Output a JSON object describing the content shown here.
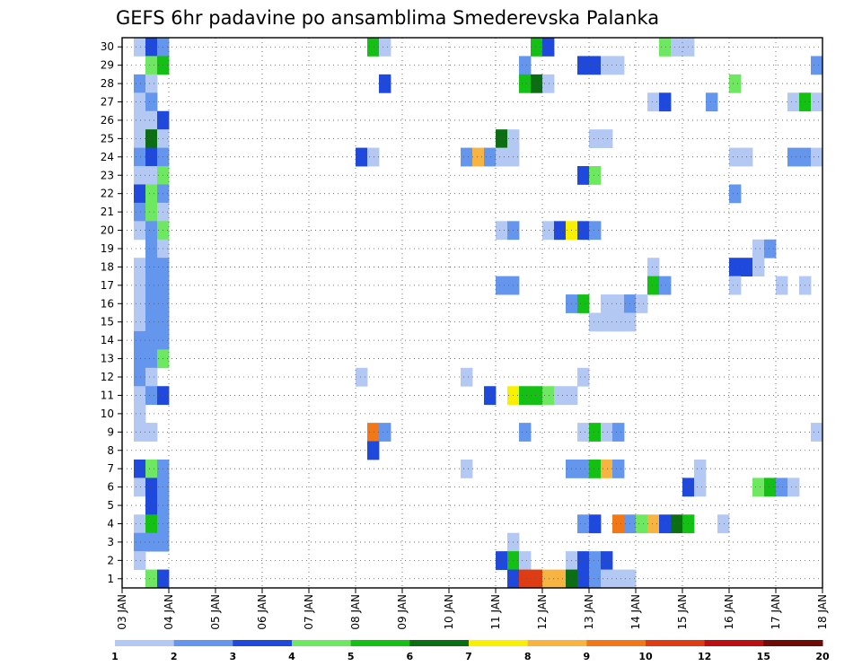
{
  "chart_data": {
    "type": "heatmap",
    "title": "GEFS 6hr padavine po ansamblima Smederevska Palanka",
    "x_tick_labels": [
      "03 JAN",
      "04 JAN",
      "05 JAN",
      "06 JAN",
      "07 JAN",
      "08 JAN",
      "09 JAN",
      "10 JAN",
      "11 JAN",
      "12 JAN",
      "13 JAN",
      "14 JAN",
      "15 JAN",
      "16 JAN",
      "17 JAN",
      "18 JAN"
    ],
    "y_tick_labels": [
      "1",
      "2",
      "3",
      "4",
      "5",
      "6",
      "7",
      "8",
      "9",
      "10",
      "11",
      "12",
      "13",
      "14",
      "15",
      "16",
      "17",
      "18",
      "19",
      "20",
      "21",
      "22",
      "23",
      "24",
      "25",
      "26",
      "27",
      "28",
      "29",
      "30"
    ],
    "grid": true,
    "colorbar": {
      "labels": [
        "1",
        "2",
        "3",
        "4",
        "5",
        "6",
        "7",
        "8",
        "9",
        "10",
        "12",
        "15",
        "20"
      ],
      "colors": [
        "#b4c8f4",
        "#6496ee",
        "#1f48dc",
        "#6ee860",
        "#14c014",
        "#0c6e12",
        "#f8f000",
        "#f8b440",
        "#f07818",
        "#e03c14",
        "#bc1010",
        "#6e0c08"
      ]
    },
    "cells": [
      [
        30,
        1,
        1
      ],
      [
        30,
        2,
        3
      ],
      [
        30,
        3,
        2
      ],
      [
        30,
        21,
        5
      ],
      [
        30,
        22,
        1
      ],
      [
        30,
        35,
        5
      ],
      [
        30,
        36,
        3
      ],
      [
        30,
        46,
        4
      ],
      [
        30,
        47,
        1
      ],
      [
        30,
        48,
        1
      ],
      [
        29,
        2,
        4
      ],
      [
        29,
        3,
        5
      ],
      [
        29,
        34,
        2
      ],
      [
        29,
        39,
        3
      ],
      [
        29,
        40,
        3
      ],
      [
        29,
        41,
        1
      ],
      [
        29,
        42,
        1
      ],
      [
        29,
        59,
        2
      ],
      [
        28,
        1,
        2
      ],
      [
        28,
        2,
        1
      ],
      [
        28,
        22,
        3
      ],
      [
        28,
        34,
        5
      ],
      [
        28,
        35,
        6
      ],
      [
        28,
        36,
        1
      ],
      [
        28,
        52,
        4
      ],
      [
        27,
        1,
        1
      ],
      [
        27,
        2,
        2
      ],
      [
        27,
        45,
        1
      ],
      [
        27,
        46,
        3
      ],
      [
        27,
        50,
        2
      ],
      [
        27,
        57,
        1
      ],
      [
        27,
        58,
        5
      ],
      [
        27,
        59,
        1
      ],
      [
        26,
        1,
        1
      ],
      [
        26,
        2,
        1
      ],
      [
        26,
        3,
        3
      ],
      [
        25,
        1,
        1
      ],
      [
        25,
        2,
        6
      ],
      [
        25,
        3,
        1
      ],
      [
        25,
        32,
        6
      ],
      [
        25,
        33,
        1
      ],
      [
        25,
        40,
        1
      ],
      [
        25,
        41,
        1
      ],
      [
        24,
        1,
        2
      ],
      [
        24,
        2,
        3
      ],
      [
        24,
        3,
        2
      ],
      [
        24,
        20,
        3
      ],
      [
        24,
        21,
        1
      ],
      [
        24,
        29,
        2
      ],
      [
        24,
        30,
        8
      ],
      [
        24,
        31,
        2
      ],
      [
        24,
        32,
        1
      ],
      [
        24,
        33,
        1
      ],
      [
        24,
        52,
        1
      ],
      [
        24,
        53,
        1
      ],
      [
        24,
        57,
        2
      ],
      [
        24,
        58,
        2
      ],
      [
        24,
        59,
        1
      ],
      [
        23,
        1,
        1
      ],
      [
        23,
        2,
        1
      ],
      [
        23,
        3,
        4
      ],
      [
        23,
        39,
        3
      ],
      [
        23,
        40,
        4
      ],
      [
        22,
        1,
        3
      ],
      [
        22,
        2,
        4
      ],
      [
        22,
        3,
        2
      ],
      [
        22,
        52,
        2
      ],
      [
        21,
        1,
        2
      ],
      [
        21,
        2,
        4
      ],
      [
        21,
        3,
        1
      ],
      [
        20,
        1,
        1
      ],
      [
        20,
        2,
        2
      ],
      [
        20,
        3,
        4
      ],
      [
        20,
        32,
        1
      ],
      [
        20,
        33,
        2
      ],
      [
        20,
        36,
        1
      ],
      [
        20,
        37,
        3
      ],
      [
        20,
        38,
        7
      ],
      [
        20,
        39,
        3
      ],
      [
        20,
        40,
        2
      ],
      [
        19,
        2,
        2
      ],
      [
        19,
        3,
        1
      ],
      [
        19,
        54,
        1
      ],
      [
        19,
        55,
        2
      ],
      [
        18,
        1,
        1
      ],
      [
        18,
        2,
        2
      ],
      [
        18,
        3,
        2
      ],
      [
        18,
        45,
        1
      ],
      [
        18,
        52,
        3
      ],
      [
        18,
        53,
        3
      ],
      [
        18,
        54,
        1
      ],
      [
        17,
        1,
        1
      ],
      [
        17,
        2,
        2
      ],
      [
        17,
        3,
        2
      ],
      [
        17,
        32,
        2
      ],
      [
        17,
        33,
        2
      ],
      [
        17,
        45,
        5
      ],
      [
        17,
        46,
        2
      ],
      [
        17,
        52,
        1
      ],
      [
        17,
        56,
        1
      ],
      [
        17,
        58,
        1
      ],
      [
        16,
        1,
        1
      ],
      [
        16,
        2,
        2
      ],
      [
        16,
        3,
        2
      ],
      [
        16,
        38,
        2
      ],
      [
        16,
        39,
        5
      ],
      [
        16,
        41,
        1
      ],
      [
        16,
        42,
        1
      ],
      [
        16,
        43,
        2
      ],
      [
        16,
        44,
        1
      ],
      [
        15,
        1,
        1
      ],
      [
        15,
        2,
        2
      ],
      [
        15,
        3,
        2
      ],
      [
        15,
        40,
        1
      ],
      [
        15,
        41,
        1
      ],
      [
        15,
        42,
        1
      ],
      [
        15,
        43,
        1
      ],
      [
        14,
        1,
        2
      ],
      [
        14,
        2,
        2
      ],
      [
        14,
        3,
        2
      ],
      [
        13,
        1,
        2
      ],
      [
        13,
        2,
        2
      ],
      [
        13,
        3,
        4
      ],
      [
        12,
        1,
        2
      ],
      [
        12,
        2,
        1
      ],
      [
        12,
        20,
        1
      ],
      [
        12,
        29,
        1
      ],
      [
        12,
        39,
        1
      ],
      [
        11,
        1,
        1
      ],
      [
        11,
        2,
        2
      ],
      [
        11,
        3,
        3
      ],
      [
        11,
        31,
        3
      ],
      [
        11,
        33,
        7
      ],
      [
        11,
        34,
        5
      ],
      [
        11,
        35,
        5
      ],
      [
        11,
        36,
        4
      ],
      [
        11,
        37,
        1
      ],
      [
        11,
        38,
        1
      ],
      [
        10,
        1,
        1
      ],
      [
        9,
        1,
        1
      ],
      [
        9,
        2,
        1
      ],
      [
        9,
        21,
        9
      ],
      [
        9,
        22,
        2
      ],
      [
        9,
        34,
        2
      ],
      [
        9,
        39,
        1
      ],
      [
        9,
        40,
        5
      ],
      [
        9,
        41,
        1
      ],
      [
        9,
        42,
        2
      ],
      [
        9,
        59,
        1
      ],
      [
        8,
        21,
        3
      ],
      [
        7,
        1,
        3
      ],
      [
        7,
        2,
        4
      ],
      [
        7,
        3,
        2
      ],
      [
        7,
        29,
        1
      ],
      [
        7,
        38,
        2
      ],
      [
        7,
        39,
        2
      ],
      [
        7,
        40,
        5
      ],
      [
        7,
        41,
        8
      ],
      [
        7,
        42,
        2
      ],
      [
        7,
        49,
        1
      ],
      [
        6,
        1,
        1
      ],
      [
        6,
        2,
        3
      ],
      [
        6,
        3,
        2
      ],
      [
        6,
        48,
        3
      ],
      [
        6,
        49,
        1
      ],
      [
        6,
        54,
        4
      ],
      [
        6,
        55,
        5
      ],
      [
        6,
        56,
        2
      ],
      [
        6,
        57,
        1
      ],
      [
        5,
        2,
        3
      ],
      [
        5,
        3,
        2
      ],
      [
        4,
        1,
        1
      ],
      [
        4,
        2,
        5
      ],
      [
        4,
        3,
        2
      ],
      [
        4,
        39,
        2
      ],
      [
        4,
        40,
        3
      ],
      [
        4,
        42,
        9
      ],
      [
        4,
        43,
        2
      ],
      [
        4,
        44,
        4
      ],
      [
        4,
        45,
        8
      ],
      [
        4,
        46,
        3
      ],
      [
        4,
        47,
        6
      ],
      [
        4,
        48,
        5
      ],
      [
        4,
        51,
        1
      ],
      [
        3,
        1,
        2
      ],
      [
        3,
        2,
        2
      ],
      [
        3,
        3,
        2
      ],
      [
        3,
        33,
        1
      ],
      [
        2,
        1,
        1
      ],
      [
        2,
        32,
        3
      ],
      [
        2,
        33,
        5
      ],
      [
        2,
        34,
        1
      ],
      [
        2,
        38,
        1
      ],
      [
        2,
        39,
        3
      ],
      [
        2,
        40,
        2
      ],
      [
        2,
        41,
        3
      ],
      [
        1,
        2,
        4
      ],
      [
        1,
        3,
        3
      ],
      [
        1,
        33,
        3
      ],
      [
        1,
        34,
        10
      ],
      [
        1,
        35,
        10
      ],
      [
        1,
        36,
        8
      ],
      [
        1,
        37,
        8
      ],
      [
        1,
        38,
        6
      ],
      [
        1,
        39,
        3
      ],
      [
        1,
        40,
        2
      ],
      [
        1,
        41,
        1
      ],
      [
        1,
        42,
        1
      ],
      [
        1,
        43,
        1
      ]
    ]
  }
}
